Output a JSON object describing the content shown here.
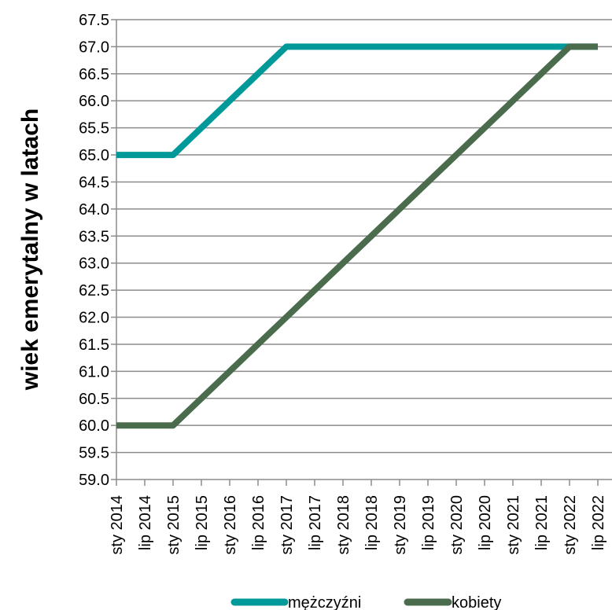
{
  "chart_data": {
    "type": "line",
    "title": "",
    "xlabel": "",
    "ylabel": "wiek emerytalny w latach",
    "categories": [
      "sty 2014",
      "lip 2014",
      "sty 2015",
      "lip 2015",
      "sty 2016",
      "lip 2016",
      "sty 2017",
      "lip 2017",
      "sty 2018",
      "lip 2018",
      "sty 2019",
      "lip 2019",
      "sty 2020",
      "lip 2020",
      "sty 2021",
      "lip 2021",
      "sty 2022",
      "lip 2022"
    ],
    "ylim": [
      59.0,
      67.5
    ],
    "yticks": [
      "59.0",
      "59.5",
      "60.0",
      "60.5",
      "61.0",
      "61.5",
      "62.0",
      "62.5",
      "63.0",
      "63.5",
      "64.0",
      "64.5",
      "65.0",
      "65.5",
      "66.0",
      "66.5",
      "67.0",
      "67.5"
    ],
    "grid": true,
    "legend_position": "bottom",
    "series": [
      {
        "name": "mężczyźni",
        "color": "#009999",
        "values": [
          65.0,
          65.0,
          65.0,
          65.5,
          66.0,
          66.5,
          67.0,
          67.0,
          67.0,
          67.0,
          67.0,
          67.0,
          67.0,
          67.0,
          67.0,
          67.0,
          67.0,
          67.0
        ]
      },
      {
        "name": "kobiety",
        "color": "#4a6b4c",
        "values": [
          60.0,
          60.0,
          60.0,
          60.5,
          61.0,
          61.5,
          62.0,
          62.5,
          63.0,
          63.5,
          64.0,
          64.5,
          65.0,
          65.5,
          66.0,
          66.5,
          67.0,
          67.0
        ]
      }
    ]
  }
}
